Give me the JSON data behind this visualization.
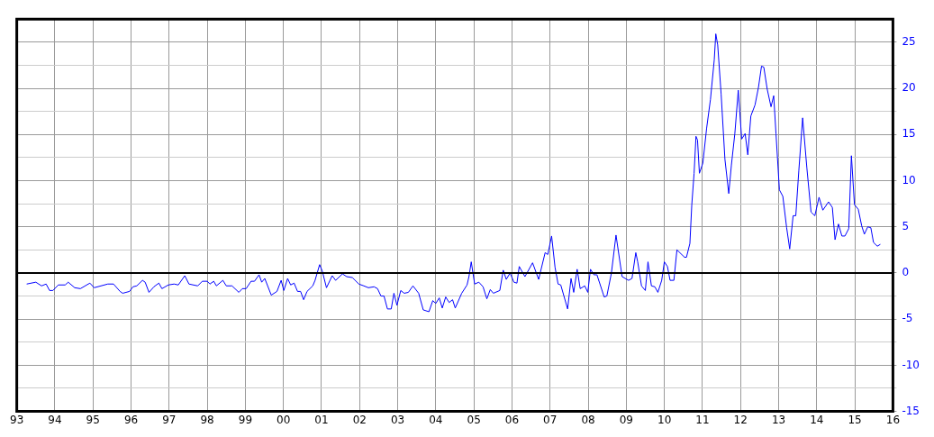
{
  "chart_data": {
    "type": "line",
    "xlim": [
      1993,
      2016
    ],
    "ylim": [
      -15,
      27.5
    ],
    "xticks": [
      {
        "value": 1993,
        "label": "93"
      },
      {
        "value": 1994,
        "label": "94"
      },
      {
        "value": 1995,
        "label": "95"
      },
      {
        "value": 1996,
        "label": "96"
      },
      {
        "value": 1997,
        "label": "97"
      },
      {
        "value": 1998,
        "label": "98"
      },
      {
        "value": 1999,
        "label": "99"
      },
      {
        "value": 2000,
        "label": "00"
      },
      {
        "value": 2001,
        "label": "01"
      },
      {
        "value": 2002,
        "label": "02"
      },
      {
        "value": 2003,
        "label": "03"
      },
      {
        "value": 2004,
        "label": "04"
      },
      {
        "value": 2005,
        "label": "05"
      },
      {
        "value": 2006,
        "label": "06"
      },
      {
        "value": 2007,
        "label": "07"
      },
      {
        "value": 2008,
        "label": "08"
      },
      {
        "value": 2009,
        "label": "09"
      },
      {
        "value": 2010,
        "label": "10"
      },
      {
        "value": 2011,
        "label": "11"
      },
      {
        "value": 2012,
        "label": "12"
      },
      {
        "value": 2013,
        "label": "13"
      },
      {
        "value": 2014,
        "label": "14"
      },
      {
        "value": 2015,
        "label": "15"
      },
      {
        "value": 2016,
        "label": "16"
      }
    ],
    "yticks": [
      -15,
      {
        "value": -12.5,
        "label": null
      },
      -10,
      {
        "value": -7.5,
        "label": null
      },
      -5,
      {
        "value": -2.5,
        "label": null
      },
      0,
      {
        "value": 2.5,
        "label": null
      },
      5,
      {
        "value": 7.5,
        "label": null
      },
      10,
      {
        "value": 12.5,
        "label": null
      },
      15,
      {
        "value": 17.5,
        "label": null
      },
      20,
      {
        "value": 22.5,
        "label": null
      },
      25
    ],
    "grid": true,
    "legend": false,
    "marker": "none",
    "line_style": "solid",
    "ref_lines": [
      {
        "axis": "y",
        "value": 0,
        "color": "#000000"
      }
    ],
    "series": [
      {
        "color": "#0000ff",
        "x": [
          1993.26,
          1993.5,
          1993.65,
          1993.77,
          1993.86,
          1993.95,
          1994.09,
          1994.27,
          1994.35,
          1994.52,
          1994.67,
          1994.92,
          1995.03,
          1995.39,
          1995.54,
          1995.71,
          1995.78,
          1995.96,
          1996.05,
          1996.15,
          1996.3,
          1996.37,
          1996.47,
          1996.6,
          1996.73,
          1996.81,
          1996.98,
          1997.13,
          1997.24,
          1997.41,
          1997.52,
          1997.75,
          1997.87,
          1998,
          1998.07,
          1998.17,
          1998.24,
          1998.41,
          1998.5,
          1998.65,
          1998.83,
          1998.92,
          1999.02,
          1999.15,
          1999.24,
          1999.36,
          1999.43,
          1999.51,
          1999.68,
          1999.83,
          1999.94,
          2000.01,
          2000.11,
          2000.19,
          2000.28,
          2000.37,
          2000.45,
          2000.53,
          2000.62,
          2000.77,
          2000.83,
          2000.95,
          2001.02,
          2001.13,
          2001.28,
          2001.37,
          2001.55,
          2001.66,
          2001.81,
          2001.98,
          2002.11,
          2002.23,
          2002.38,
          2002.47,
          2002.56,
          2002.64,
          2002.73,
          2002.83,
          2002.9,
          2002.98,
          2003.08,
          2003.17,
          2003.28,
          2003.4,
          2003.55,
          2003.67,
          2003.82,
          2003.92,
          2004,
          2004.09,
          2004.17,
          2004.26,
          2004.35,
          2004.44,
          2004.51,
          2004.68,
          2004.82,
          2004.87,
          2004.93,
          2005.02,
          2005.13,
          2005.24,
          2005.34,
          2005.43,
          2005.51,
          2005.68,
          2005.77,
          2005.85,
          2005.95,
          2006.05,
          2006.13,
          2006.19,
          2006.34,
          2006.54,
          2006.7,
          2006.87,
          2006.94,
          2007.04,
          2007.13,
          2007.21,
          2007.28,
          2007.46,
          2007.55,
          2007.62,
          2007.71,
          2007.79,
          2007.91,
          2007.99,
          2008.06,
          2008.15,
          2008.23,
          2008.42,
          2008.49,
          2008.61,
          2008.73,
          2008.89,
          2009.06,
          2009.15,
          2009.25,
          2009.3,
          2009.4,
          2009.5,
          2009.57,
          2009.66,
          2009.75,
          2009.83,
          2009.93,
          2010,
          2010.08,
          2010.15,
          2010.25,
          2010.33,
          2010.53,
          2010.58,
          2010.67,
          2010.72,
          2010.78,
          2010.83,
          2010.87,
          2010.92,
          2011.01,
          2011.11,
          2011.21,
          2011.31,
          2011.35,
          2011.4,
          2011.49,
          2011.59,
          2011.69,
          2011.76,
          2011.85,
          2011.94,
          2012.03,
          2012.12,
          2012.19,
          2012.27,
          2012.38,
          2012.47,
          2012.55,
          2012.61,
          2012.7,
          2012.8,
          2012.87,
          2012.93,
          2013.02,
          2013.11,
          2013.21,
          2013.29,
          2013.38,
          2013.45,
          2013.53,
          2013.63,
          2013.74,
          2013.85,
          2013.95,
          2014.06,
          2014.16,
          2014.31,
          2014.41,
          2014.48,
          2014.57,
          2014.66,
          2014.74,
          2014.84,
          2014.91,
          2014.99,
          2015.09,
          2015.18,
          2015.25,
          2015.34,
          2015.42,
          2015.49,
          2015.59,
          2015.67
        ],
        "values": [
          -1.2,
          -1,
          -1.4,
          -1.2,
          -1.9,
          -1.9,
          -1.3,
          -1.3,
          -1,
          -1.6,
          -1.7,
          -1.1,
          -1.6,
          -1.2,
          -1.2,
          -2,
          -2.2,
          -2,
          -1.5,
          -1.4,
          -0.8,
          -1,
          -2.1,
          -1.5,
          -1.1,
          -1.7,
          -1.3,
          -1.2,
          -1.3,
          -0.3,
          -1.2,
          -1.4,
          -0.9,
          -0.9,
          -1.2,
          -0.9,
          -1.4,
          -0.8,
          -1.4,
          -1.4,
          -2.1,
          -1.7,
          -1.7,
          -0.9,
          -0.9,
          -0.2,
          -1,
          -0.6,
          -2.4,
          -2,
          -0.8,
          -1.9,
          -0.6,
          -1.3,
          -1.1,
          -2,
          -2,
          -2.9,
          -2,
          -1.4,
          -0.8,
          0.9,
          0.2,
          -1.6,
          -0.3,
          -0.8,
          -0.1,
          -0.4,
          -0.5,
          -1.2,
          -1.4,
          -1.6,
          -1.5,
          -1.7,
          -2.5,
          -2.5,
          -3.9,
          -3.9,
          -2.2,
          -3.5,
          -1.9,
          -2.2,
          -2.1,
          -1.4,
          -2.2,
          -4,
          -4.2,
          -3,
          -3.3,
          -2.7,
          -3.8,
          -2.6,
          -3.2,
          -2.9,
          -3.8,
          -2.2,
          -1.3,
          -0.4,
          1.2,
          -1.2,
          -1,
          -1.5,
          -2.8,
          -1.8,
          -2.2,
          -1.9,
          0.3,
          -0.7,
          0,
          -1,
          -1.1,
          0.7,
          -0.4,
          1.1,
          -0.7,
          2.2,
          2,
          4,
          0.6,
          -1.2,
          -1.3,
          -3.9,
          -0.6,
          -2.1,
          0.4,
          -1.7,
          -1.4,
          -2.1,
          0.4,
          -0.2,
          -0.2,
          -2.6,
          -2.5,
          0,
          4.1,
          -0.4,
          -0.8,
          -0.6,
          2.2,
          1.2,
          -1.4,
          -1.9,
          1.2,
          -1.4,
          -1.5,
          -2.1,
          -0.8,
          1.2,
          0.7,
          -0.8,
          -0.8,
          2.5,
          1.7,
          1.7,
          3.2,
          7.4,
          10.8,
          14.8,
          14.4,
          10.8,
          11.9,
          15.7,
          18.8,
          23.1,
          25.9,
          24.7,
          19.4,
          12.3,
          8.6,
          11.7,
          15.1,
          19.8,
          14.5,
          15.1,
          12.8,
          17,
          18.2,
          20.1,
          22.4,
          22.3,
          19.9,
          18,
          19.2,
          15.1,
          9,
          8.3,
          4.9,
          2.6,
          6.2,
          6.2,
          11.1,
          16.8,
          11.4,
          6.6,
          6.2,
          8.2,
          6.8,
          7.7,
          7.1,
          3.6,
          5.3,
          4,
          4,
          4.8,
          12.7,
          7.4,
          6.9,
          5.1,
          4.2,
          5,
          4.9,
          3.3,
          2.9,
          3.1
        ]
      }
    ]
  }
}
